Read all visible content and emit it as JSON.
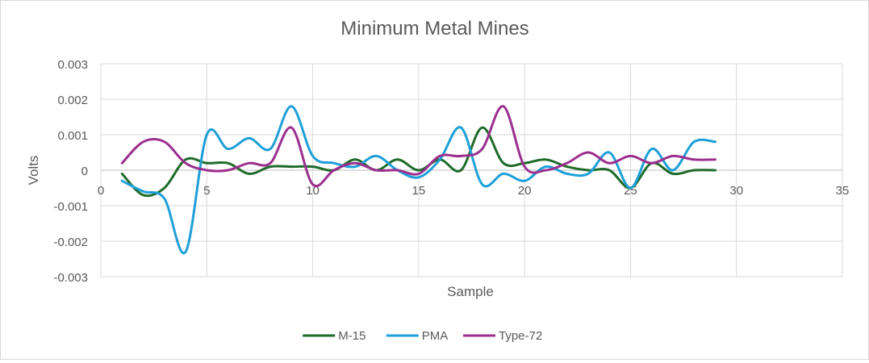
{
  "chart_data": {
    "type": "line",
    "title": "Minimum Metal Mines",
    "xlabel": "Sample",
    "ylabel": "Volts",
    "xlim": [
      0,
      35
    ],
    "ylim": [
      -0.003,
      0.003
    ],
    "x_ticks": [
      0,
      5,
      10,
      15,
      20,
      25,
      30,
      35
    ],
    "x_tick_labels": [
      "0",
      "5",
      "10",
      "15",
      "20",
      "25",
      "30",
      "35"
    ],
    "y_ticks": [
      0.003,
      0.002,
      0.001,
      0,
      -0.001,
      -0.002,
      -0.003
    ],
    "y_tick_labels": [
      "0.003",
      "0.002",
      "0.001",
      "0",
      "-0.001",
      "-0.002",
      "-0.003"
    ],
    "grid": true,
    "smooth": true,
    "legend_position": "bottom",
    "x": [
      1,
      2,
      3,
      4,
      5,
      6,
      7,
      8,
      9,
      10,
      11,
      12,
      13,
      14,
      15,
      16,
      17,
      18,
      19,
      20,
      21,
      22,
      23,
      24,
      25,
      26,
      27,
      28,
      29
    ],
    "series": [
      {
        "name": "M-15",
        "color": "#1f6b2a",
        "values": [
          -0.0001,
          -0.0007,
          -0.0005,
          0.0003,
          0.0002,
          0.0002,
          -0.0001,
          0.0001,
          0.0001,
          0.0001,
          0.0,
          0.0003,
          0.0,
          0.0003,
          0.0,
          0.0003,
          0.0,
          0.0012,
          0.0002,
          0.0002,
          0.0003,
          0.0001,
          0.0,
          0.0,
          -0.0005,
          0.0002,
          -0.0001,
          0.0,
          0.0
        ]
      },
      {
        "name": "PMA",
        "color": "#1e9fd8",
        "values": [
          -0.0003,
          -0.0006,
          -0.0008,
          -0.0023,
          0.001,
          0.0006,
          0.0009,
          0.0006,
          0.0018,
          0.0004,
          0.0002,
          0.0001,
          0.0004,
          0.0,
          -0.0002,
          0.0003,
          0.0012,
          -0.0004,
          -0.0001,
          -0.0003,
          0.0001,
          -0.0001,
          -0.0001,
          0.0005,
          -0.0005,
          0.0006,
          0.0,
          0.0008,
          0.0008
        ]
      },
      {
        "name": "Type-72",
        "color": "#9b2f8e",
        "values": [
          0.0002,
          0.0008,
          0.0008,
          0.0002,
          0.0,
          0.0,
          0.0002,
          0.0002,
          0.0012,
          -0.0004,
          0.0,
          0.0002,
          0.0,
          0.0,
          -0.0001,
          0.0004,
          0.0004,
          0.0006,
          0.0018,
          0.0001,
          0.0,
          0.0002,
          0.0005,
          0.0002,
          0.0004,
          0.0002,
          0.0004,
          0.0003,
          0.0003
        ]
      }
    ]
  }
}
